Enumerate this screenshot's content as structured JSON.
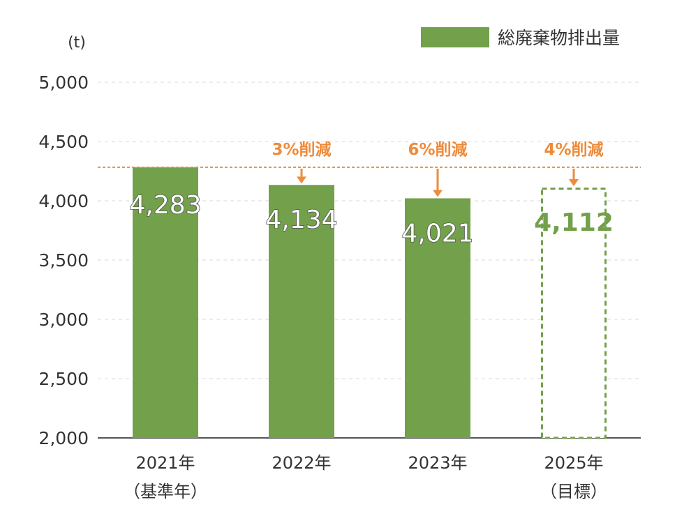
{
  "chart_data": {
    "type": "bar",
    "unit": "(t)",
    "ylim": [
      2000,
      5000
    ],
    "yticks": [
      "2,000",
      "2,500",
      "3,000",
      "3,500",
      "4,000",
      "4,500",
      "5,000"
    ],
    "ytick_values": [
      2000,
      2500,
      3000,
      3500,
      4000,
      4500,
      5000
    ],
    "grid": true,
    "legend": {
      "position": "top-right",
      "entries": [
        "総廃棄物排出量"
      ]
    },
    "categories": [
      {
        "line1": "2021年",
        "line2": "（基準年）"
      },
      {
        "line1": "2022年",
        "line2": ""
      },
      {
        "line1": "2023年",
        "line2": ""
      },
      {
        "line1": "2025年",
        "line2": "（目標）"
      }
    ],
    "series": [
      {
        "name": "総廃棄物排出量",
        "values": [
          4283,
          4134,
          4021,
          4112
        ],
        "labels": [
          "4,283",
          "4,134",
          "4,021",
          "4,112"
        ],
        "target": [
          false,
          false,
          false,
          true
        ]
      }
    ],
    "baseline": 4283,
    "reductions": [
      "",
      "3%削減",
      "6%削減",
      "4%削減"
    ],
    "colors": {
      "bar": "#73a04a",
      "accent": "#ee8b3a",
      "axis": "#555555",
      "grid": "#d9d9d9",
      "text": "#333333"
    }
  }
}
